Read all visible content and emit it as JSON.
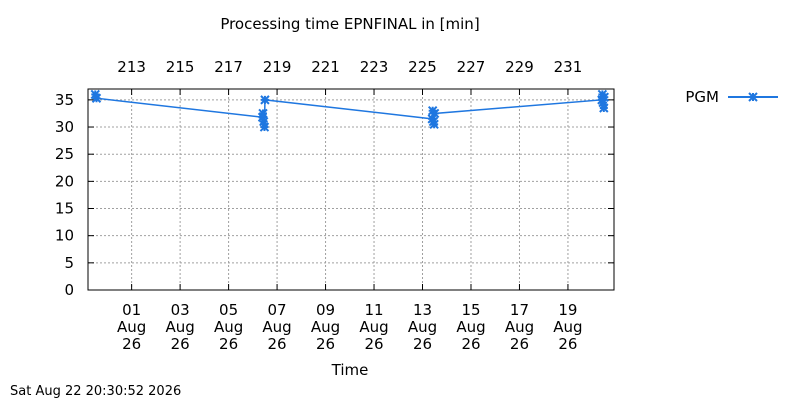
{
  "chart_data": {
    "type": "line",
    "title": "Processing time EPNFINAL in [min]",
    "xlabel": "Time",
    "ylabel": "",
    "ylim": [
      0,
      37
    ],
    "yticks": [
      0,
      5,
      10,
      15,
      20,
      25,
      30,
      35
    ],
    "x_bottom_ticks": [
      {
        "day": -0.8,
        "lines": [
          "01",
          "Aug",
          "26"
        ]
      },
      {
        "day": 1.2,
        "lines": [
          "03",
          "Aug",
          "26"
        ]
      },
      {
        "day": 3.2,
        "lines": [
          "05",
          "Aug",
          "26"
        ]
      },
      {
        "day": 5.2,
        "lines": [
          "07",
          "Aug",
          "26"
        ]
      },
      {
        "day": 7.2,
        "lines": [
          "09",
          "Aug",
          "26"
        ]
      },
      {
        "day": 9.2,
        "lines": [
          "11",
          "Aug",
          "26"
        ]
      },
      {
        "day": 11.2,
        "lines": [
          "13",
          "Aug",
          "26"
        ]
      },
      {
        "day": 13.2,
        "lines": [
          "15",
          "Aug",
          "26"
        ]
      },
      {
        "day": 15.2,
        "lines": [
          "17",
          "Aug",
          "26"
        ]
      },
      {
        "day": 17.2,
        "lines": [
          "19",
          "Aug",
          "26"
        ]
      }
    ],
    "x_top_ticks": [
      {
        "day": -0.8,
        "label": "213"
      },
      {
        "day": 1.2,
        "label": "215"
      },
      {
        "day": 3.2,
        "label": "217"
      },
      {
        "day": 5.2,
        "label": "219"
      },
      {
        "day": 7.2,
        "label": "221"
      },
      {
        "day": 9.2,
        "label": "223"
      },
      {
        "day": 11.2,
        "label": "225"
      },
      {
        "day": 13.2,
        "label": "227"
      },
      {
        "day": 15.2,
        "label": "229"
      },
      {
        "day": 17.2,
        "label": "231"
      }
    ],
    "xlim": [
      -2.6,
      19.1
    ],
    "grid": true,
    "legend_position": "top-right",
    "series": [
      {
        "name": "PGM",
        "color": "#1f77e0",
        "marker": "x-star",
        "points": [
          {
            "day": -2.3,
            "y": 36.0
          },
          {
            "day": -2.25,
            "y": 35.3
          },
          {
            "day": 4.6,
            "y": 31.8
          },
          {
            "day": 4.62,
            "y": 32.5
          },
          {
            "day": 4.65,
            "y": 31.0
          },
          {
            "day": 4.68,
            "y": 30.0
          },
          {
            "day": 4.7,
            "y": 35.0
          },
          {
            "day": 11.6,
            "y": 31.5
          },
          {
            "day": 11.62,
            "y": 33.0
          },
          {
            "day": 11.65,
            "y": 31.0
          },
          {
            "day": 11.68,
            "y": 30.5
          },
          {
            "day": 11.7,
            "y": 32.5
          },
          {
            "day": 18.6,
            "y": 35.0
          },
          {
            "day": 18.62,
            "y": 36.0
          },
          {
            "day": 18.65,
            "y": 34.5
          },
          {
            "day": 18.68,
            "y": 33.5
          },
          {
            "day": 18.7,
            "y": 35.5
          }
        ]
      }
    ]
  },
  "footer": {
    "timestamp": "Sat Aug 22 20:30:52 2026"
  }
}
